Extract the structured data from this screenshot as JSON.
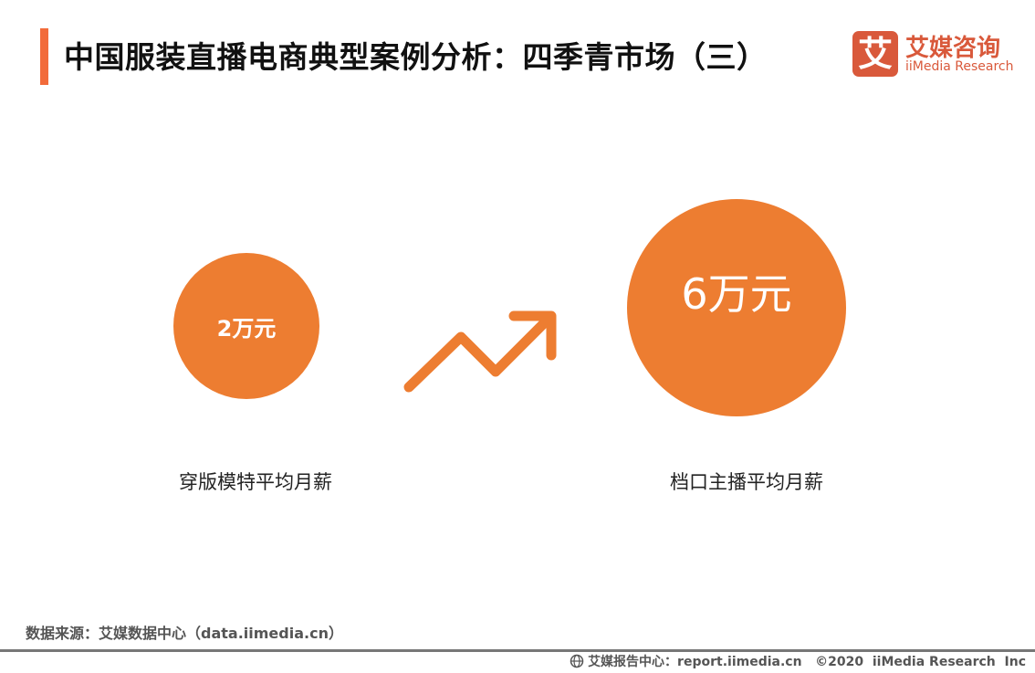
{
  "header": {
    "title": "中国服装直播电商典型案例分析：四季青市场（三）"
  },
  "logo": {
    "mark": "艾",
    "cn": "艾媒咨询",
    "en": "iiMedia Research",
    "color": "#D9593B"
  },
  "comparison": {
    "accent_color": "#ED7D31",
    "left": {
      "value": "2万元",
      "label": "穿版模特平均月薪"
    },
    "right": {
      "value": "6万元",
      "label": "档口主播平均月薪"
    },
    "trend_icon": "trend-up-arrow-icon"
  },
  "source": "数据来源：艾媒数据中心（data.iimedia.cn）",
  "footer": {
    "icon": "globe-icon",
    "text": "艾媒报告中心：report.iimedia.cn   ©2020  iiMedia Research  Inc"
  }
}
